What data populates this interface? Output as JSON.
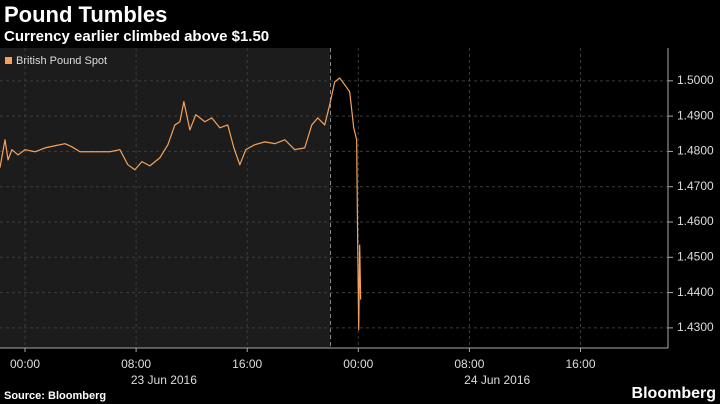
{
  "chart_data": {
    "type": "line",
    "title": "Pound Tumbles",
    "subtitle": "Currency earlier climbed above $1.50",
    "source": "Source: Bloomberg",
    "brand": "Bloomberg",
    "x": [
      -1.8,
      -1.44,
      -1.22,
      -0.94,
      -0.5,
      0,
      0.72,
      1.44,
      2.16,
      2.88,
      3.38,
      3.96,
      5.04,
      6.12,
      6.83,
      7.41,
      7.91,
      8.42,
      8.99,
      9.71,
      10.29,
      10.79,
      11.15,
      11.44,
      11.87,
      12.3,
      12.95,
      13.45,
      14.03,
      14.6,
      15.04,
      15.47,
      15.9,
      16.55,
      17.27,
      17.99,
      18.71,
      19.42,
      20.14,
      20.65,
      21.08,
      21.58,
      21.94,
      22.3,
      22.66,
      23.02,
      23.38,
      23.67,
      23.88,
      23.96,
      24.03,
      24.1,
      24.17
    ],
    "series": [
      {
        "name": "British Pound Spot",
        "color": "#f4a25b",
        "values": [
          1.4754,
          1.4833,
          1.4776,
          1.4805,
          1.479,
          1.4805,
          1.4799,
          1.481,
          1.4816,
          1.4822,
          1.4813,
          1.4799,
          1.4799,
          1.4799,
          1.4805,
          1.4762,
          1.4748,
          1.4771,
          1.4759,
          1.4782,
          1.4819,
          1.4875,
          1.4884,
          1.4941,
          1.4861,
          1.4904,
          1.4884,
          1.4895,
          1.4867,
          1.4875,
          1.481,
          1.4762,
          1.4805,
          1.4819,
          1.4827,
          1.4822,
          1.4833,
          1.4805,
          1.481,
          1.4875,
          1.4895,
          1.4875,
          1.4932,
          1.4997,
          1.5008,
          1.4989,
          1.4969,
          1.4867,
          1.4833,
          1.4521,
          1.4295,
          1.4535,
          1.438
        ]
      }
    ],
    "xlim": [
      -1.8,
      46.3
    ],
    "xticks": [
      {
        "value": 0,
        "label": "00:00"
      },
      {
        "value": 8,
        "label": "08:00"
      },
      {
        "value": 16,
        "label": "16:00"
      },
      {
        "value": 24,
        "label": "00:00"
      },
      {
        "value": 32,
        "label": "08:00"
      },
      {
        "value": 40,
        "label": "16:00"
      }
    ],
    "date_labels": [
      "23 Jun 2016",
      "24 Jun 2016"
    ],
    "shaded_until": 22,
    "ylim": [
      1.4243,
      1.5093
    ],
    "yticks": [
      {
        "value": 1.43,
        "label": "1.4300"
      },
      {
        "value": 1.44,
        "label": "1.4400"
      },
      {
        "value": 1.45,
        "label": "1.4500"
      },
      {
        "value": 1.46,
        "label": "1.4600"
      },
      {
        "value": 1.47,
        "label": "1.4700"
      },
      {
        "value": 1.48,
        "label": "1.4800"
      },
      {
        "value": 1.49,
        "label": "1.4900"
      },
      {
        "value": 1.5,
        "label": "1.5000"
      }
    ],
    "grid": true
  }
}
